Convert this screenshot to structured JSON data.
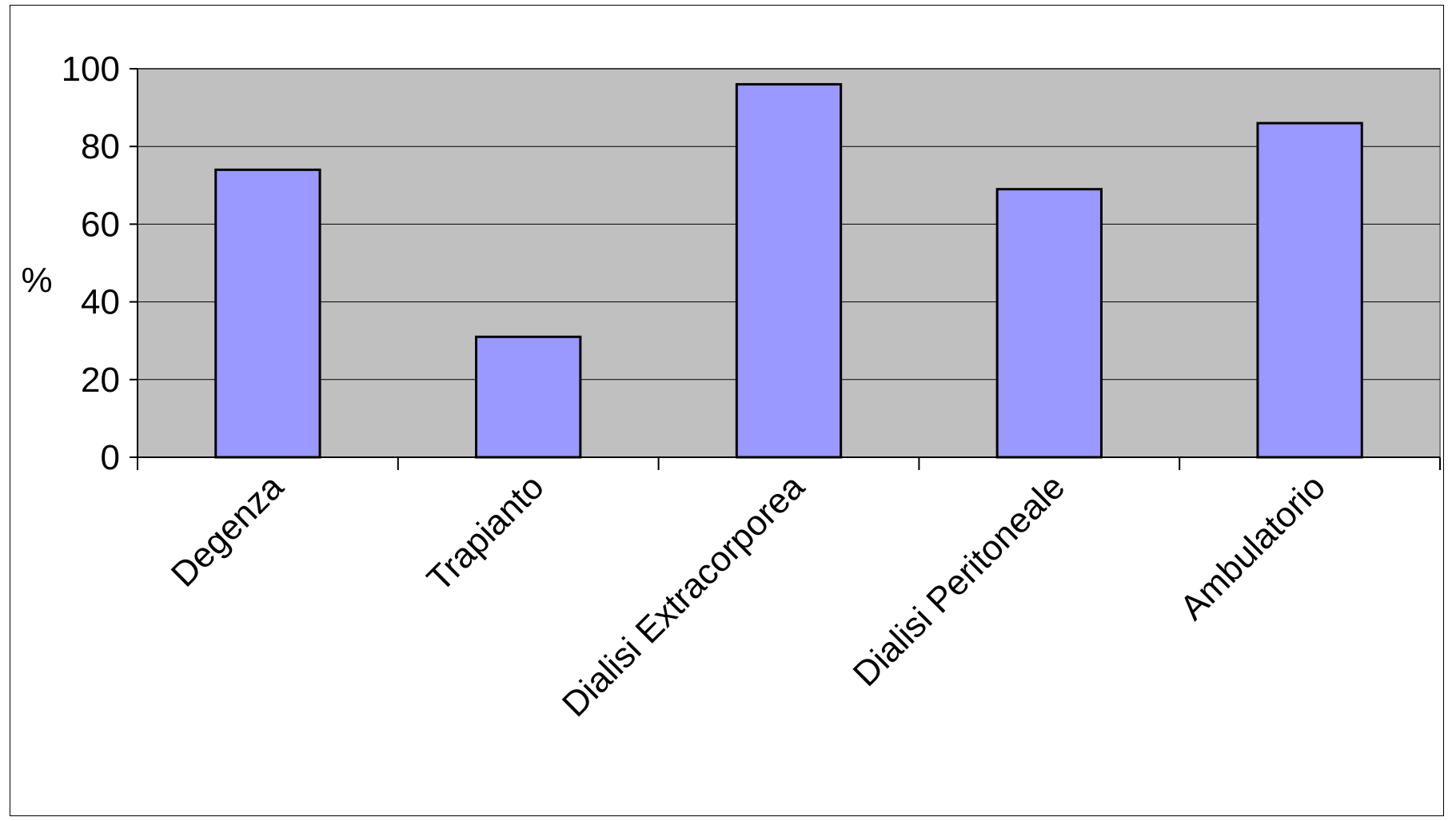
{
  "chart_data": {
    "type": "bar",
    "categories": [
      "Degenza",
      "Trapianto",
      "Dialisi Extracorporea",
      "Dialisi Peritoneale",
      "Ambulatorio"
    ],
    "values": [
      74,
      31,
      96,
      69,
      86
    ],
    "title": "",
    "xlabel": "",
    "ylabel": "%",
    "ylim": [
      0,
      100
    ],
    "yticks": [
      "0",
      "20",
      "40",
      "60",
      "80",
      "100"
    ],
    "grid": true,
    "legend": "none",
    "colors": {
      "plot_background": "#c0c0c0",
      "bar_fill": "#9999ff",
      "bar_stroke": "#000000",
      "gridline": "#000000"
    }
  }
}
